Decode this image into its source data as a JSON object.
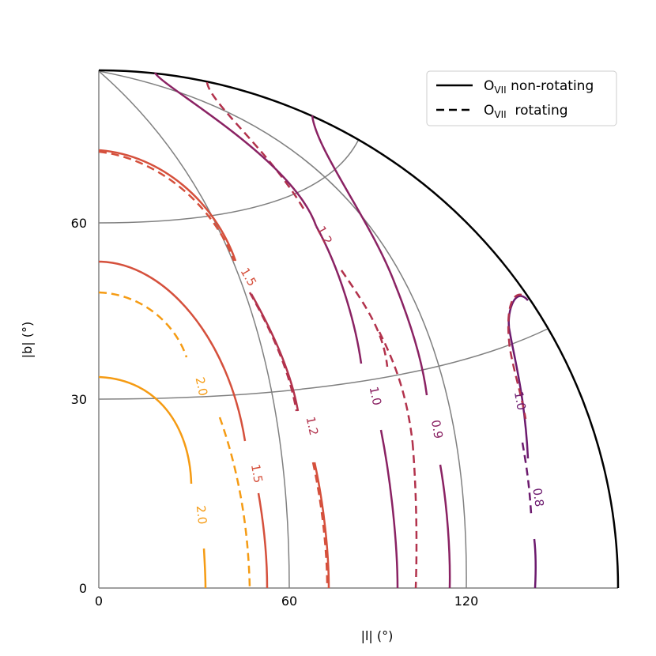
{
  "chart_data": {
    "type": "line",
    "projection": "quarter-sphere polar, Galactic coordinates",
    "xlabel": "|l| (°)",
    "ylabel": "|b| (°)",
    "xticks": [
      "0",
      "60",
      "120"
    ],
    "yticks": [
      "0",
      "30",
      "60"
    ],
    "grid": true,
    "legend": {
      "position": "top-right",
      "entries": [
        {
          "label_main": "O",
          "label_sub": "VII",
          "label_rest": " non-rotating",
          "style": "solid"
        },
        {
          "label_main": "O",
          "label_sub": "VII",
          "label_rest": "  rotating",
          "style": "dashed"
        }
      ]
    },
    "series": [
      {
        "name": "2.0",
        "style": "solid",
        "color": "#f59b13",
        "label": "2.0"
      },
      {
        "name": "2.0",
        "style": "dashed",
        "color": "#f59b13",
        "label": "2.0"
      },
      {
        "name": "1.5",
        "style": "solid",
        "color": "#d5503c",
        "label": "1.5"
      },
      {
        "name": "1.5",
        "style": "dashed",
        "color": "#d5503c",
        "label": "1.5"
      },
      {
        "name": "1.2",
        "style": "solid",
        "color": "#b2324c",
        "label": "1.2"
      },
      {
        "name": "1.2",
        "style": "dashed",
        "color": "#b2324c",
        "label": "1.2"
      },
      {
        "name": "1.0",
        "style": "solid",
        "color": "#8a2263",
        "label": "1.0"
      },
      {
        "name": "0.9",
        "style": "dashed",
        "color": "#8a2263",
        "label": "0.9"
      },
      {
        "name": "1.0",
        "style": "solid",
        "color": "#6c1a6e",
        "label": "1.0"
      },
      {
        "name": "0.8",
        "style": "dashed",
        "color": "#6c1a6e",
        "label": "0.8"
      }
    ]
  }
}
